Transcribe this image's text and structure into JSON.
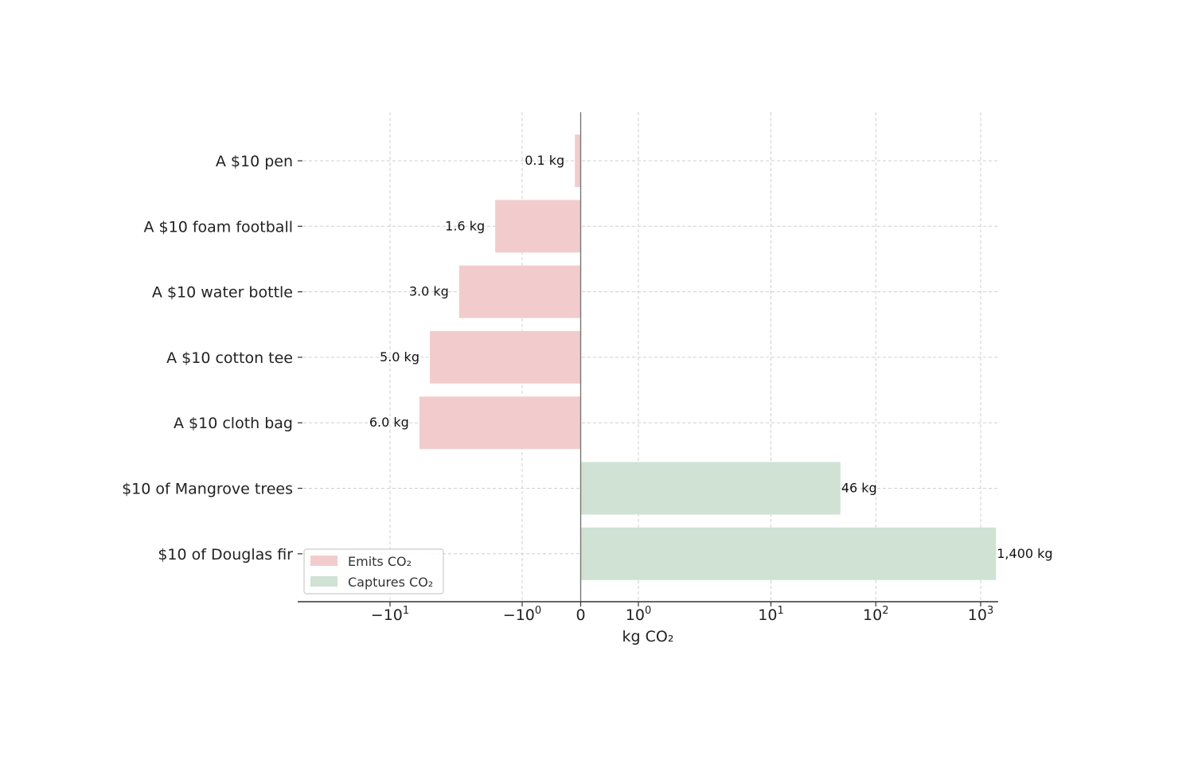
{
  "chart_data": {
    "type": "bar",
    "orientation": "horizontal",
    "x_scale": "symlog",
    "xlabel": "kg CO₂",
    "title": "",
    "grid": true,
    "legend_position": "lower-left",
    "categories": [
      "A $10 pen",
      "A $10 foam football",
      "A $10 water bottle",
      "A $10 cotton tee",
      "A $10 cloth bag",
      "$10 of Mangrove trees",
      "$10 of Douglas fir"
    ],
    "values": [
      -0.1,
      -1.6,
      -3.0,
      -5.0,
      -6.0,
      46,
      1400
    ],
    "data_labels": [
      "0.1 kg",
      "1.6 kg",
      "3.0 kg",
      "5.0 kg",
      "6.0 kg",
      "46 kg",
      "1,400 kg"
    ],
    "x_ticks": [
      {
        "value": -10,
        "base": "−10",
        "exp": "1"
      },
      {
        "value": -1,
        "base": "−10",
        "exp": "0"
      },
      {
        "value": 0,
        "base": "0",
        "exp": ""
      },
      {
        "value": 1,
        "base": "10",
        "exp": "0"
      },
      {
        "value": 10,
        "base": "10",
        "exp": "1"
      },
      {
        "value": 100,
        "base": "10",
        "exp": "2"
      },
      {
        "value": 1000,
        "base": "10",
        "exp": "3"
      }
    ],
    "legend": [
      {
        "label": "Emits CO₂",
        "color": "#f2cccc"
      },
      {
        "label": "Captures CO₂",
        "color": "#cfe2d4"
      }
    ],
    "colors": {
      "emits": "#f2cccc",
      "captures": "#cfe2d4"
    }
  }
}
